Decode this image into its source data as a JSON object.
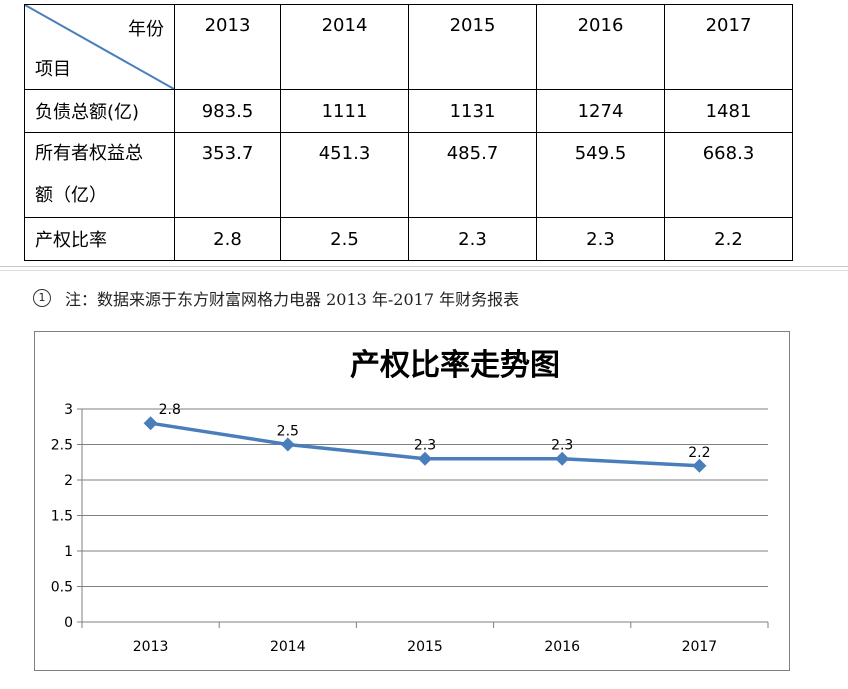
{
  "table": {
    "corner_top": "年份",
    "corner_bottom": "项目",
    "years": [
      "2013",
      "2014",
      "2015",
      "2016",
      "2017"
    ],
    "rows": [
      {
        "label": "负债总额(亿)",
        "values": [
          "983.5",
          "1111",
          "1131",
          "1274",
          "1481"
        ]
      },
      {
        "label_line1": "所有者权益总",
        "label_line2": "额（亿）",
        "values": [
          "353.7",
          "451.3",
          "485.7",
          "549.5",
          "668.3"
        ]
      },
      {
        "label": "产权比率",
        "values": [
          "2.8",
          "2.5",
          "2.3",
          "2.3",
          "2.2"
        ]
      }
    ]
  },
  "footnote": {
    "marker": "1",
    "text": "注：数据来源于东方财富网格力电器 2013 年-2017 年财务报表"
  },
  "chart_data": {
    "type": "line",
    "title": "产权比率走势图",
    "categories": [
      "2013",
      "2014",
      "2015",
      "2016",
      "2017"
    ],
    "series": [
      {
        "values": [
          2.8,
          2.5,
          2.3,
          2.3,
          2.2
        ],
        "labels": [
          "2.8",
          "2.5",
          "2.3",
          "2.3",
          "2.2"
        ]
      }
    ],
    "ylim": [
      0,
      3
    ],
    "yticks": [
      "0",
      "0.5",
      "1",
      "1.5",
      "2",
      "2.5",
      "3"
    ],
    "grid": true,
    "legend": "none",
    "xlabel": "",
    "ylabel": "",
    "line_color": "#4a7ebb",
    "marker_color": "#4a7ebb"
  }
}
